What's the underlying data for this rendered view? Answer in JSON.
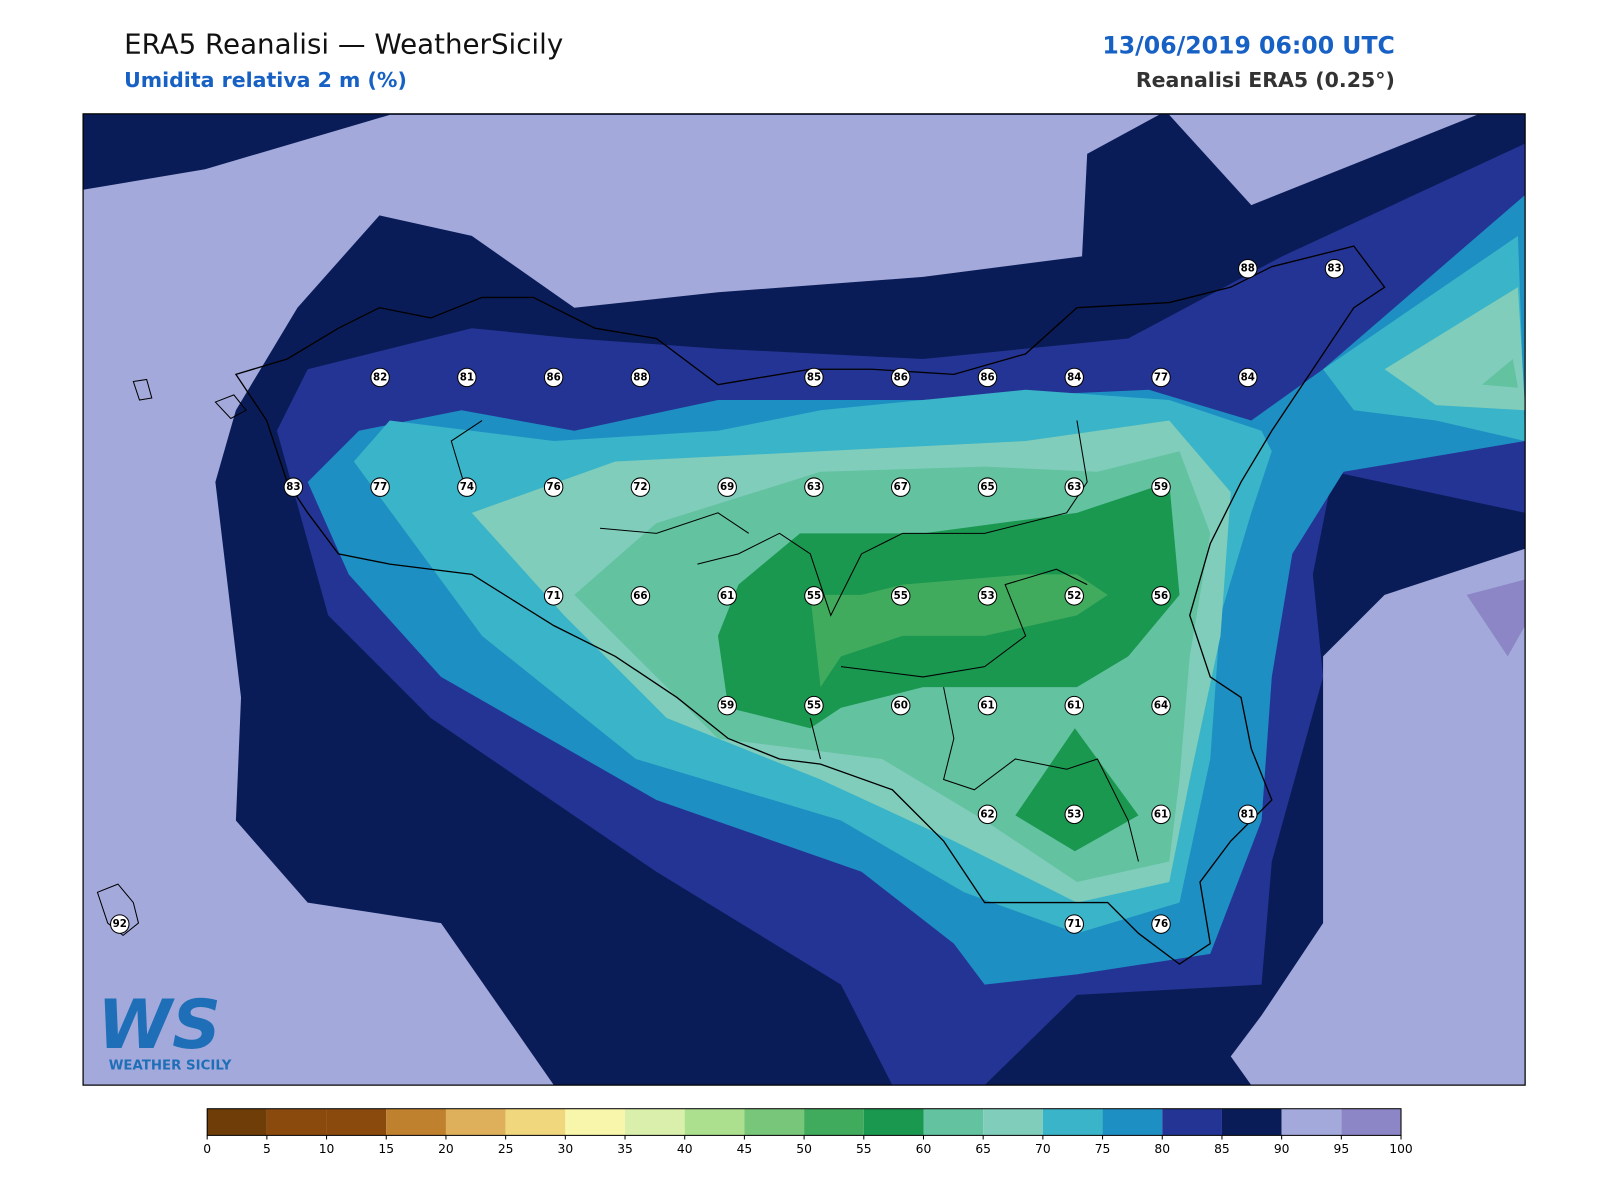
{
  "header": {
    "title": "ERA5 Reanalisi — WeatherSicily",
    "subtitle": "Umidita relativa 2 m (%)",
    "datetime": "13/06/2019 06:00 UTC",
    "source": "Reanalisi ERA5 (0.25°)"
  },
  "logo": {
    "mark": "WS",
    "name": "WEATHER SICILY"
  },
  "stations": {
    "rows": [
      [
        88,
        83
      ],
      [
        82,
        81,
        86,
        88,
        85,
        86,
        86,
        84,
        77,
        84
      ],
      [
        83,
        77,
        74,
        76,
        72,
        69,
        63,
        67,
        65,
        63,
        59
      ],
      [
        71,
        66,
        61,
        55,
        55,
        53,
        52,
        56
      ],
      [
        59,
        55,
        60,
        61,
        61,
        64
      ],
      [
        62,
        53,
        61,
        81
      ],
      [
        92,
        71,
        76
      ]
    ]
  },
  "colorbar": {
    "ticks": [
      0,
      5,
      10,
      15,
      20,
      25,
      30,
      35,
      40,
      45,
      50,
      55,
      60,
      65,
      70,
      75,
      80,
      85,
      90,
      95,
      100
    ],
    "colors": [
      "#6f3d08",
      "#8b4a0d",
      "#8b4a0d",
      "#c0812e",
      "#dfb05c",
      "#f0d67d",
      "#f7f6ab",
      "#d9efab",
      "#acdf8e",
      "#78c679",
      "#41ab5d",
      "#1a9850",
      "#63c2a0",
      "#80cdbb",
      "#3ab4c8",
      "#1d8fc3",
      "#243494",
      "#0a1c58",
      "#a3aadb",
      "#8c86c6"
    ]
  }
}
